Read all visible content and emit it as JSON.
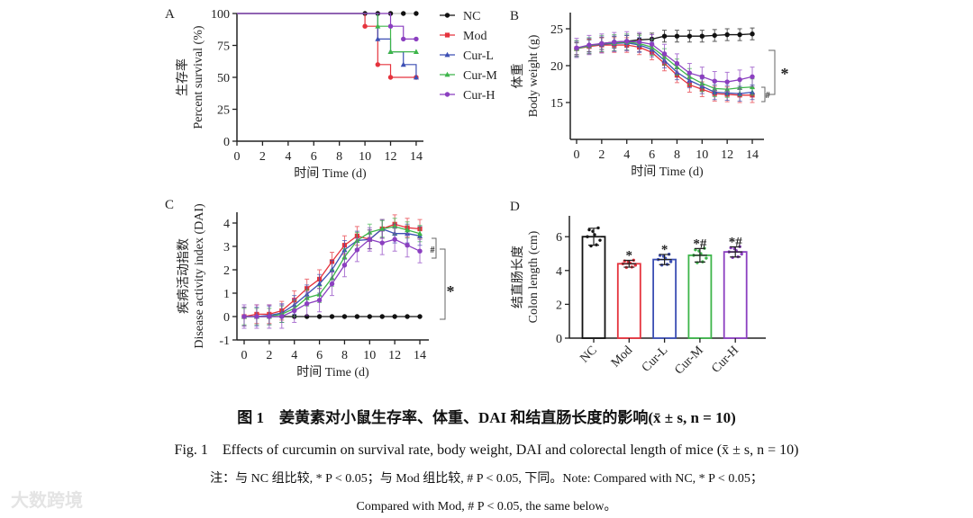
{
  "colors": {
    "NC": "#111111",
    "Mod": "#e5333d",
    "Cur-L": "#3c4fb4",
    "Cur-M": "#3db54a",
    "Cur-H": "#8b3fc0",
    "ref": "#bbbbbb"
  },
  "chart_data": [
    {
      "panel": "A",
      "type": "line",
      "subtype": "kaplan-meier",
      "ylabel_cn": "生存率",
      "ylabel": "Percent survival (%)",
      "xlabel": "时间 Time (d)",
      "xlim": [
        0,
        14
      ],
      "ylim": [
        0,
        100
      ],
      "xticks": [
        "0",
        "2",
        "4",
        "6",
        "8",
        "10",
        "12",
        "14"
      ],
      "yticks": [
        "0",
        "25",
        "50",
        "75",
        "100"
      ],
      "legend_position": "right",
      "series": [
        {
          "name": "NC",
          "steps": [
            [
              0,
              100
            ],
            [
              10,
              100
            ],
            [
              11,
              100
            ],
            [
              12,
              100
            ],
            [
              13,
              100
            ],
            [
              14,
              100
            ]
          ]
        },
        {
          "name": "Mod",
          "steps": [
            [
              0,
              100
            ],
            [
              10,
              90
            ],
            [
              11,
              60
            ],
            [
              12,
              50
            ],
            [
              14,
              50
            ]
          ]
        },
        {
          "name": "Cur-L",
          "steps": [
            [
              0,
              100
            ],
            [
              11,
              80
            ],
            [
              12,
              70
            ],
            [
              13,
              60
            ],
            [
              14,
              50
            ]
          ]
        },
        {
          "name": "Cur-M",
          "steps": [
            [
              0,
              100
            ],
            [
              11,
              90
            ],
            [
              12,
              70
            ],
            [
              14,
              70
            ]
          ]
        },
        {
          "name": "Cur-H",
          "steps": [
            [
              0,
              100
            ],
            [
              12,
              90
            ],
            [
              13,
              80
            ],
            [
              14,
              80
            ]
          ]
        }
      ]
    },
    {
      "panel": "B",
      "type": "line",
      "ylabel_cn": "体重",
      "ylabel": "Body weight (g)",
      "xlabel": "时间 Time (d)",
      "xlim": [
        0,
        14
      ],
      "ylim": [
        10,
        27
      ],
      "xticks": [
        "0",
        "2",
        "4",
        "6",
        "8",
        "10",
        "12",
        "14"
      ],
      "yticks": [
        "15",
        "20",
        "25"
      ],
      "x": [
        0,
        1,
        2,
        3,
        4,
        5,
        6,
        7,
        8,
        9,
        10,
        11,
        12,
        13,
        14
      ],
      "series": [
        {
          "name": "NC",
          "sd": 0.8,
          "values": [
            22.3,
            22.7,
            23.0,
            23.2,
            23.3,
            23.5,
            23.6,
            24.0,
            24.0,
            24.0,
            24.0,
            24.1,
            24.2,
            24.2,
            24.3
          ]
        },
        {
          "name": "Mod",
          "sd": 1.0,
          "values": [
            22.3,
            22.6,
            22.8,
            22.8,
            22.8,
            22.5,
            21.8,
            20.3,
            18.7,
            17.4,
            16.8,
            16.2,
            16.1,
            16.0,
            16.0
          ]
        },
        {
          "name": "Cur-L",
          "sd": 1.0,
          "values": [
            22.3,
            22.7,
            22.9,
            23.0,
            23.1,
            22.8,
            22.2,
            20.7,
            19.1,
            18.0,
            17.2,
            16.4,
            16.3,
            16.2,
            16.4
          ]
        },
        {
          "name": "Cur-M",
          "sd": 1.1,
          "values": [
            22.3,
            22.7,
            23.0,
            23.1,
            23.2,
            23.0,
            22.5,
            21.2,
            19.8,
            18.5,
            17.6,
            16.9,
            16.8,
            17.0,
            17.1
          ]
        },
        {
          "name": "Cur-H",
          "sd": 1.3,
          "values": [
            22.4,
            22.8,
            23.0,
            23.2,
            23.3,
            23.2,
            22.9,
            21.6,
            20.3,
            19.0,
            18.5,
            17.9,
            17.8,
            18.1,
            18.5
          ]
        }
      ],
      "annotations": [
        "*",
        "#"
      ]
    },
    {
      "panel": "C",
      "type": "line",
      "ylabel_cn": "疾病活动指数",
      "ylabel": "Disease activity index (DAI)",
      "xlabel": "时间 Time (d)",
      "xlim": [
        0,
        14
      ],
      "ylim": [
        -1,
        4.4
      ],
      "xticks": [
        "0",
        "2",
        "4",
        "6",
        "8",
        "10",
        "12",
        "14"
      ],
      "yticks": [
        "-1",
        "0",
        "1",
        "2",
        "3",
        "4"
      ],
      "x": [
        0,
        1,
        2,
        3,
        4,
        5,
        6,
        7,
        8,
        9,
        10,
        11,
        12,
        13,
        14
      ],
      "series": [
        {
          "name": "NC",
          "sd": 0,
          "values": [
            0,
            0,
            0,
            0,
            0,
            0,
            0,
            0,
            0,
            0,
            0,
            0,
            0,
            0,
            0
          ]
        },
        {
          "name": "Mod",
          "sd": 0.4,
          "values": [
            0,
            0.1,
            0.1,
            0.25,
            0.7,
            1.2,
            1.6,
            2.35,
            3.05,
            3.45,
            3.3,
            3.75,
            3.95,
            3.8,
            3.75
          ]
        },
        {
          "name": "Cur-L",
          "sd": 0.4,
          "values": [
            0,
            0,
            0.05,
            0.15,
            0.5,
            0.95,
            1.4,
            2.0,
            2.85,
            3.25,
            3.3,
            3.75,
            3.55,
            3.55,
            3.45
          ]
        },
        {
          "name": "Cur-M",
          "sd": 0.35,
          "values": [
            0,
            0,
            0,
            0.1,
            0.35,
            0.8,
            0.95,
            1.65,
            2.55,
            3.25,
            3.6,
            3.75,
            3.85,
            3.7,
            3.55
          ]
        },
        {
          "name": "Cur-H",
          "sd": 0.5,
          "values": [
            0,
            0,
            0,
            0,
            0.25,
            0.55,
            0.7,
            1.4,
            2.2,
            2.85,
            3.3,
            3.15,
            3.3,
            3.05,
            2.8
          ]
        }
      ],
      "annotations": [
        "#",
        "*"
      ]
    },
    {
      "panel": "D",
      "type": "bar",
      "ylabel_cn": "结直肠长度",
      "ylabel": "Colon length (cm)",
      "ylim": [
        0,
        7.2
      ],
      "yticks": [
        "0",
        "2",
        "4",
        "6"
      ],
      "categories": [
        "NC",
        "Mod",
        "Cur-L",
        "Cur-M",
        "Cur-H"
      ],
      "values": [
        6.0,
        4.4,
        4.65,
        4.9,
        5.1
      ],
      "sd": [
        0.5,
        0.2,
        0.3,
        0.4,
        0.3
      ],
      "significance": [
        "",
        "*",
        "*",
        "*#",
        "*#"
      ]
    }
  ],
  "caption": {
    "title_cn": "图 1　姜黄素对小鼠生存率、体重、DAI 和结直肠长度的影响(x̄ ± s, n = 10)",
    "title_en": "Fig. 1　Effects of curcumin on survival rate, body weight, DAI and colorectal length of mice (x̄ ± s, n = 10)",
    "note_1": "注：与 NC 组比较, * P < 0.05；与 Mod 组比较, # P < 0.05, 下同。Note: Compared with NC, * P < 0.05；",
    "note_2": "Compared with Mod, # P < 0.05, the same below。"
  },
  "watermark": "大数跨境"
}
